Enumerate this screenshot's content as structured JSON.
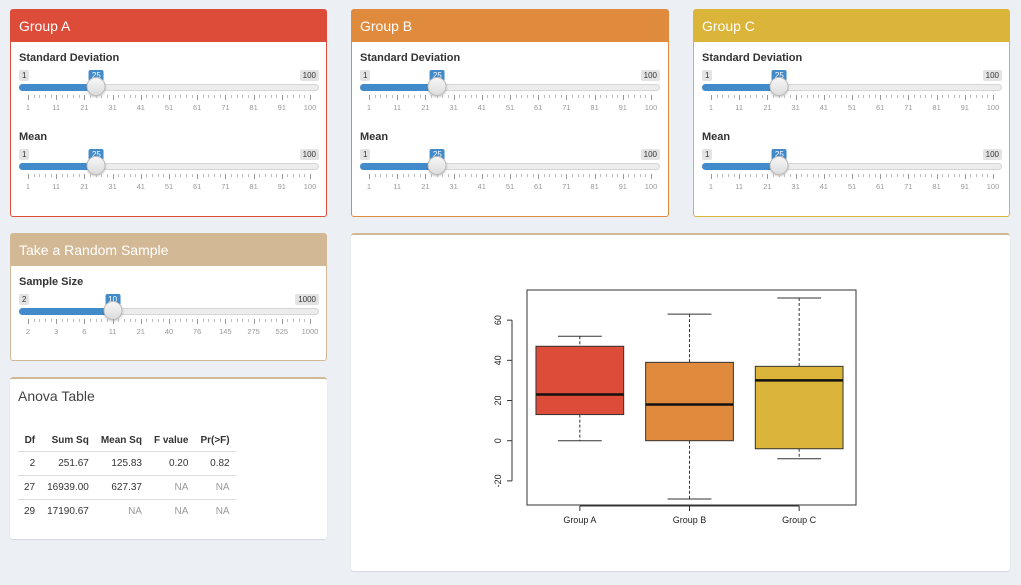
{
  "colors": {
    "group_a": "#dd4b39",
    "group_b": "#e08a3d",
    "group_c": "#dbb43a",
    "sample": "#d2b894",
    "anova_border": "#d2b894",
    "slider_accent": "#428bca"
  },
  "groups": [
    {
      "title": "Group A",
      "sd": {
        "label": "Standard Deviation",
        "min": 1,
        "max": 100,
        "value": 25,
        "ticks": [
          "1",
          "11",
          "21",
          "31",
          "41",
          "51",
          "61",
          "71",
          "81",
          "91",
          "100"
        ]
      },
      "mean": {
        "label": "Mean",
        "min": 1,
        "max": 100,
        "value": 25,
        "ticks": [
          "1",
          "11",
          "21",
          "31",
          "41",
          "51",
          "61",
          "71",
          "81",
          "91",
          "100"
        ]
      }
    },
    {
      "title": "Group B",
      "sd": {
        "label": "Standard Deviation",
        "min": 1,
        "max": 100,
        "value": 25,
        "ticks": [
          "1",
          "11",
          "21",
          "31",
          "41",
          "51",
          "61",
          "71",
          "81",
          "91",
          "100"
        ]
      },
      "mean": {
        "label": "Mean",
        "min": 1,
        "max": 100,
        "value": 25,
        "ticks": [
          "1",
          "11",
          "21",
          "31",
          "41",
          "51",
          "61",
          "71",
          "81",
          "91",
          "100"
        ]
      }
    },
    {
      "title": "Group C",
      "sd": {
        "label": "Standard Deviation",
        "min": 1,
        "max": 100,
        "value": 25,
        "ticks": [
          "1",
          "11",
          "21",
          "31",
          "41",
          "51",
          "61",
          "71",
          "81",
          "91",
          "100"
        ]
      },
      "mean": {
        "label": "Mean",
        "min": 1,
        "max": 100,
        "value": 25,
        "ticks": [
          "1",
          "11",
          "21",
          "31",
          "41",
          "51",
          "61",
          "71",
          "81",
          "91",
          "100"
        ]
      }
    }
  ],
  "sample": {
    "title": "Take a Random Sample",
    "label": "Sample Size",
    "min_label": "2",
    "max_label": "1000",
    "value_label": "10",
    "value_fraction": 0.3,
    "ticks": [
      "2",
      "3",
      "6",
      "11",
      "21",
      "40",
      "76",
      "145",
      "275",
      "525",
      "1000"
    ]
  },
  "anova": {
    "title": "Anova Table",
    "headers": [
      "Df",
      "Sum Sq",
      "Mean Sq",
      "F value",
      "Pr(>F)"
    ],
    "rows": [
      [
        "2",
        "251.67",
        "125.83",
        "0.20",
        "0.82"
      ],
      [
        "27",
        "16939.00",
        "627.37",
        "NA",
        "NA"
      ],
      [
        "29",
        "17190.67",
        "NA",
        "NA",
        "NA"
      ]
    ]
  },
  "chart_data": {
    "type": "boxplot",
    "categories": [
      "Group A",
      "Group B",
      "Group C"
    ],
    "colors": [
      "#dd4b39",
      "#e08a3d",
      "#dbb43a"
    ],
    "boxes": [
      {
        "name": "Group A",
        "min": 0,
        "q1": 13,
        "median": 23,
        "q3": 47,
        "max": 52
      },
      {
        "name": "Group B",
        "min": -29,
        "q1": 0,
        "median": 18,
        "q3": 39,
        "max": 63
      },
      {
        "name": "Group C",
        "min": -9,
        "q1": -4,
        "median": 30,
        "q3": 37,
        "max": 71
      }
    ],
    "y_ticks": [
      "-20",
      "0",
      "20",
      "40",
      "60"
    ],
    "ylim": [
      -32,
      75
    ],
    "title": "",
    "xlabel": "",
    "ylabel": ""
  }
}
